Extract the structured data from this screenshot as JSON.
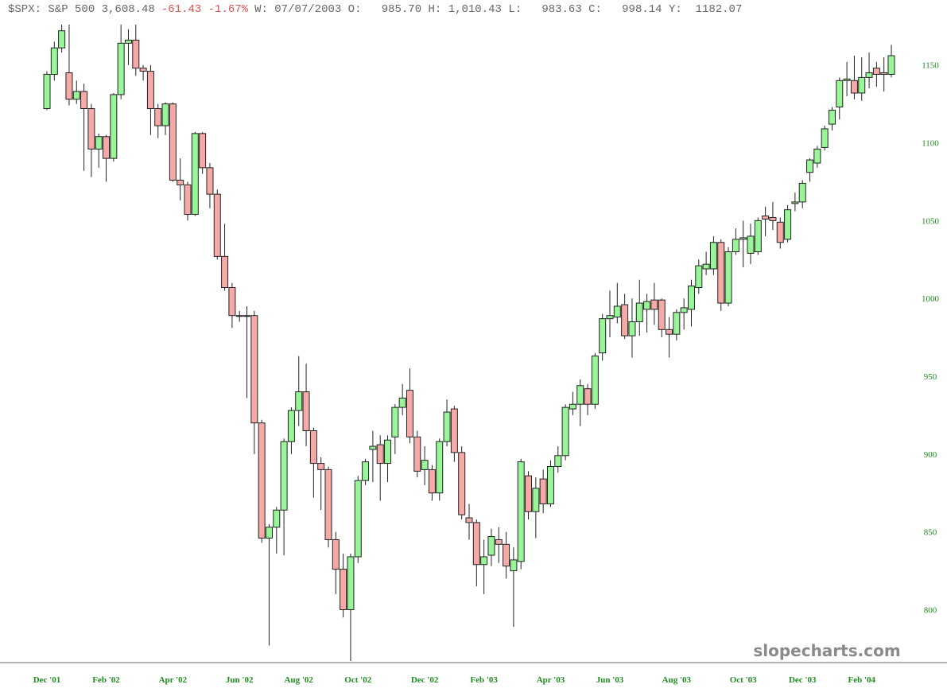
{
  "header": {
    "symbol": "$SPX: S&P 500 3,608.48",
    "change": "-61.43 -1.67%",
    "ohlc": "W: 07/07/2003 O:   985.70 H: 1,010.43 L:   983.63 C:   998.14 Y:  1182.07"
  },
  "watermark": "slopecharts.com",
  "chart_data": {
    "type": "candlestick",
    "categories": [
      "Dec '01",
      null,
      null,
      null,
      null,
      null,
      null,
      null,
      "Feb '02",
      null,
      null,
      null,
      null,
      null,
      null,
      null,
      null,
      "Apr '02",
      null,
      null,
      null,
      null,
      null,
      null,
      null,
      null,
      "Jun '02",
      null,
      null,
      null,
      null,
      null,
      null,
      null,
      "Aug '02",
      null,
      null,
      null,
      null,
      null,
      null,
      null,
      "Oct '02",
      null,
      null,
      null,
      null,
      null,
      null,
      null,
      null,
      "Dec '02",
      null,
      null,
      null,
      null,
      null,
      null,
      null,
      "Feb '03",
      null,
      null,
      null,
      null,
      null,
      null,
      null,
      null,
      "Apr '03",
      null,
      null,
      null,
      null,
      null,
      null,
      null,
      "Jun '03",
      null,
      null,
      null,
      null,
      null,
      null,
      null,
      null,
      "Aug '03",
      null,
      null,
      null,
      null,
      null,
      null,
      null,
      null,
      "Oct '03",
      null,
      null,
      null,
      null,
      null,
      null,
      null,
      "Dec '03",
      null,
      null,
      null,
      null,
      null,
      null,
      null,
      "Feb '04",
      null,
      null,
      null,
      null
    ],
    "open": [
      1122,
      1144,
      1161,
      1145,
      1128,
      1133,
      1122,
      1096,
      1104,
      1090,
      1131,
      1164,
      1166,
      1148,
      1146,
      1122,
      1111,
      1125,
      1076,
      1073,
      1054,
      1106,
      1084,
      1067,
      1027,
      1007,
      989,
      989,
      989,
      920,
      846,
      853,
      864,
      908,
      928,
      940,
      915,
      894,
      890,
      845,
      826,
      800,
      834,
      883,
      903,
      906,
      894,
      911,
      930,
      941,
      911,
      890,
      890,
      875,
      908,
      929,
      901,
      859,
      856,
      829,
      835,
      845,
      842,
      825,
      831,
      886,
      863,
      884,
      868,
      892,
      899,
      929,
      932,
      942,
      932,
      965,
      987,
      988,
      996,
      976,
      985,
      993,
      999,
      999,
      980,
      977,
      991,
      993,
      1007,
      1019,
      1019,
      1036,
      997,
      1030,
      1038,
      1029,
      1030,
      1053,
      1052,
      1049,
      1038,
      1061,
      1062,
      1081,
      1087,
      1097,
      1112,
      1123,
      1140,
      1140,
      1132,
      1142,
      1148,
      1145,
      1144
    ],
    "high": [
      1146,
      1165,
      1176,
      1176,
      1140,
      1138,
      1125,
      1106,
      1105,
      1132,
      1176,
      1173,
      1176,
      1150,
      1150,
      1125,
      1126,
      1126,
      1090,
      1075,
      1107,
      1107,
      1087,
      1070,
      1048,
      1010,
      992,
      995,
      992,
      922,
      855,
      866,
      910,
      930,
      963,
      958,
      917,
      898,
      892,
      850,
      836,
      836,
      886,
      897,
      915,
      912,
      912,
      932,
      945,
      955,
      915,
      905,
      893,
      910,
      935,
      931,
      905,
      868,
      858,
      845,
      852,
      853,
      850,
      840,
      897,
      889,
      885,
      890,
      896,
      905,
      932,
      940,
      948,
      945,
      965,
      990,
      1005,
      1010,
      1003,
      1000,
      1012,
      1003,
      1010,
      1000,
      988,
      993,
      1000,
      1012,
      1025,
      1030,
      1040,
      1038,
      1033,
      1045,
      1050,
      1048,
      1052,
      1059,
      1062,
      1052,
      1060,
      1068,
      1076,
      1090,
      1098,
      1111,
      1123,
      1142,
      1152,
      1156,
      1155,
      1158,
      1152,
      1155,
      1163
    ],
    "low": [
      1121,
      1140,
      1158,
      1124,
      1125,
      1082,
      1078,
      1084,
      1075,
      1088,
      1128,
      1150,
      1143,
      1140,
      1105,
      1103,
      1105,
      1075,
      1063,
      1050,
      1053,
      1080,
      1058,
      1025,
      1005,
      981,
      985,
      936,
      900,
      843,
      777,
      836,
      835,
      900,
      918,
      905,
      872,
      864,
      840,
      810,
      795,
      767,
      830,
      880,
      882,
      870,
      882,
      900,
      925,
      907,
      885,
      880,
      870,
      870,
      905,
      895,
      858,
      845,
      815,
      810,
      828,
      830,
      820,
      789,
      826,
      858,
      846,
      862,
      866,
      888,
      896,
      925,
      918,
      925,
      929,
      960,
      975,
      984,
      974,
      962,
      976,
      978,
      983,
      975,
      962,
      973,
      980,
      982,
      1003,
      1015,
      1015,
      992,
      995,
      1028,
      1020,
      1022,
      1028,
      1040,
      1044,
      1032,
      1036,
      1056,
      1058,
      1075,
      1084,
      1095,
      1108,
      1115,
      1130,
      1128,
      1127,
      1135,
      1136,
      1133,
      1142
    ],
    "close": [
      1144,
      1161,
      1172,
      1128,
      1133,
      1122,
      1096,
      1104,
      1090,
      1131,
      1164,
      1166,
      1148,
      1146,
      1122,
      1111,
      1125,
      1076,
      1073,
      1054,
      1106,
      1084,
      1067,
      1027,
      1007,
      989,
      989,
      989,
      920,
      846,
      853,
      864,
      908,
      928,
      940,
      915,
      894,
      890,
      845,
      826,
      800,
      834,
      883,
      895,
      905,
      894,
      909,
      930,
      936,
      911,
      889,
      896,
      875,
      908,
      927,
      901,
      861,
      856,
      829,
      834,
      847,
      842,
      828,
      832,
      895,
      863,
      878,
      868,
      892,
      899,
      930,
      932,
      944,
      932,
      963,
      987,
      989,
      995,
      976,
      985,
      997,
      998,
      993,
      980,
      977,
      991,
      994,
      1008,
      1021,
      1022,
      1036,
      997,
      1030,
      1038,
      1039,
      1040,
      1050,
      1051,
      1050,
      1036,
      1057,
      1062,
      1074,
      1089,
      1096,
      1109,
      1121,
      1140,
      1141,
      1132,
      1142,
      1145,
      1144,
      1144,
      1156
    ],
    "up_color": "#98f598",
    "down_color": "#f5aaa8",
    "ylim": [
      766,
      1179
    ],
    "yticks": [
      800,
      850,
      900,
      950,
      1000,
      1050,
      1100,
      1150
    ]
  }
}
